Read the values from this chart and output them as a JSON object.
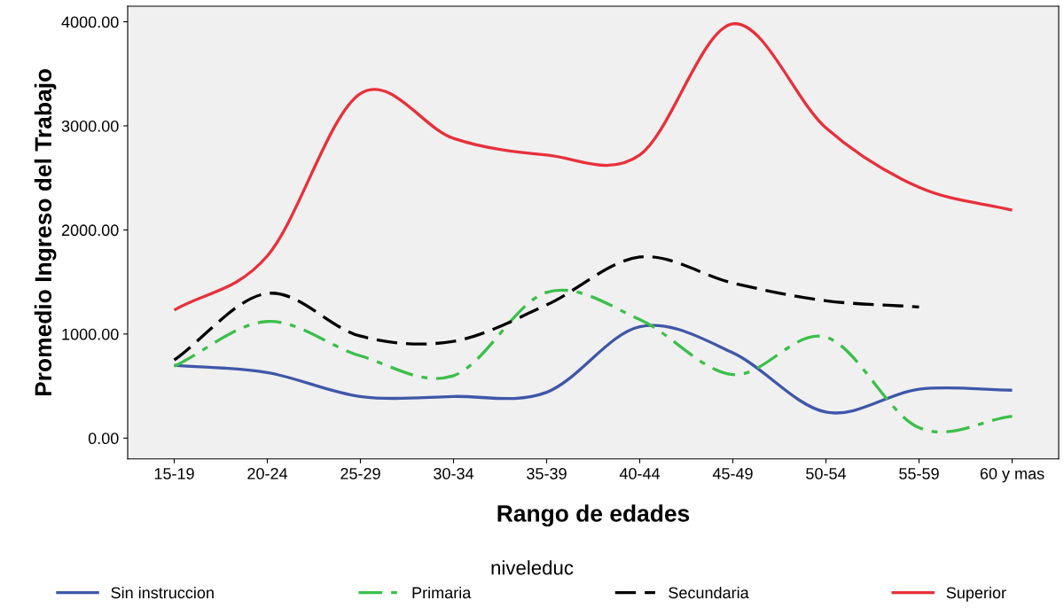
{
  "chart_data": {
    "type": "line",
    "xlabel": "Rango de edades",
    "ylabel": "Promedio Ingreso del Trabajo",
    "legend_title": "niveleduc",
    "categories": [
      "15-19",
      "20-24",
      "25-29",
      "30-34",
      "35-39",
      "40-44",
      "45-49",
      "50-54",
      "55-59",
      "60 y mas"
    ],
    "series": [
      {
        "name": "Sin instruccion",
        "color": "#3f57a8",
        "line_style": "solid",
        "values": [
          700,
          630,
          400,
          400,
          440,
          1070,
          820,
          250,
          470,
          460
        ]
      },
      {
        "name": "Primaria",
        "color": "#3bbf4a",
        "line_style": "dashdot",
        "values": [
          690,
          1120,
          790,
          600,
          1400,
          1140,
          610,
          970,
          100,
          210
        ]
      },
      {
        "name": "Secundaria",
        "color": "#000000",
        "line_style": "dashed",
        "values": [
          750,
          1390,
          980,
          930,
          1280,
          1740,
          1490,
          1320,
          1260,
          null
        ]
      },
      {
        "name": "Superior",
        "color": "#e8303a",
        "line_style": "solid",
        "values": [
          1230,
          1750,
          3310,
          2880,
          2720,
          2720,
          3980,
          2980,
          2410,
          2190
        ]
      }
    ],
    "ylim": [
      -200,
      4150
    ],
    "yticks": [
      {
        "value": 0,
        "label": "0.00"
      },
      {
        "value": 1000,
        "label": "1000.00"
      },
      {
        "value": 2000,
        "label": "2000.00"
      },
      {
        "value": 3000,
        "label": "3000.00"
      },
      {
        "value": 4000,
        "label": "4000.00"
      }
    ],
    "grid": false,
    "legend": "bottom",
    "marker": "none"
  }
}
